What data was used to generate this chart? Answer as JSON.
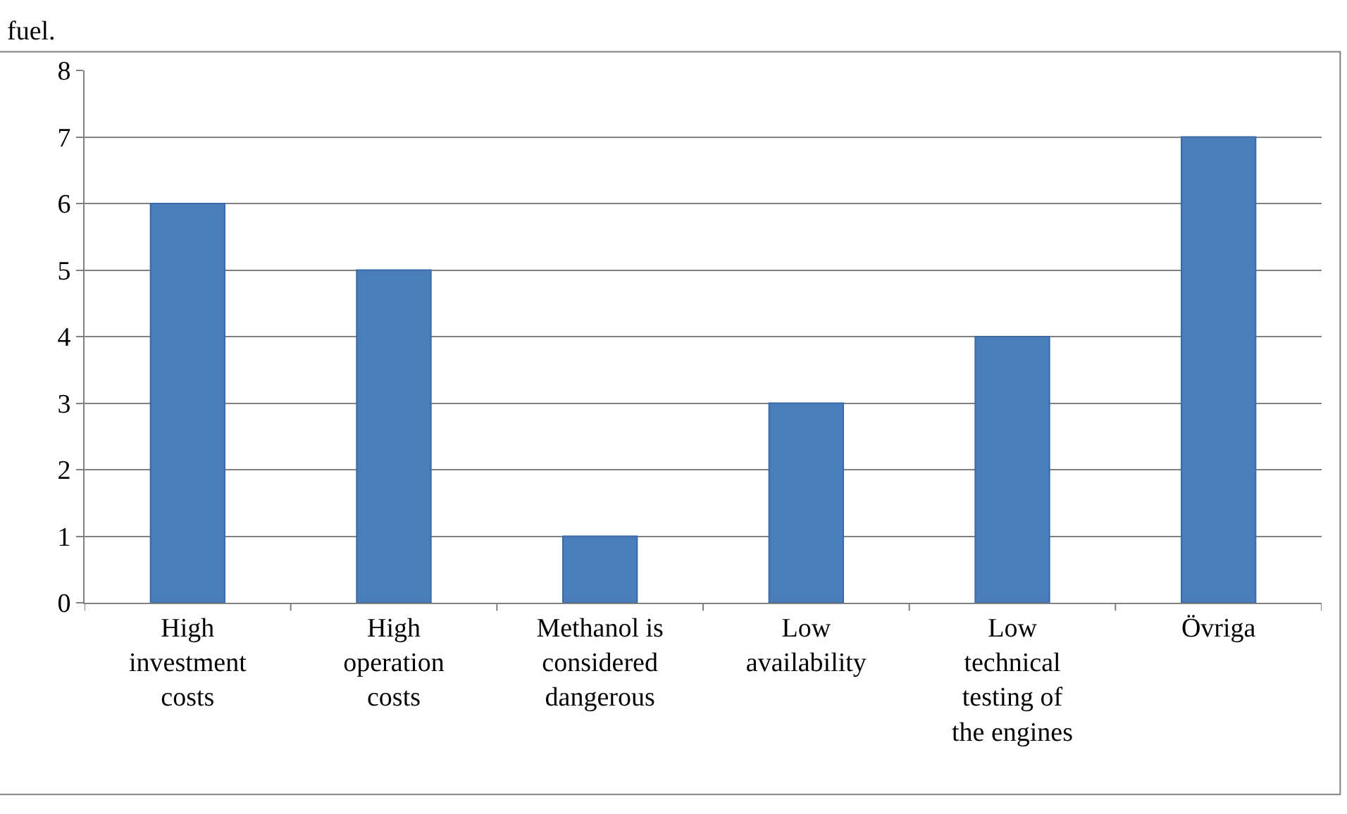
{
  "chart_data": {
    "type": "bar",
    "categories": [
      "High investment costs",
      "High operation costs",
      "Methanol is considered dangerous",
      "Low availability",
      "Low technical testing of the engines",
      "Övriga"
    ],
    "values": [
      6,
      5,
      1,
      3,
      4,
      7
    ],
    "color": "#4a7ebb",
    "ylim": [
      0,
      8
    ],
    "yticks": [
      0,
      1,
      2,
      3,
      4,
      5,
      6,
      7,
      8
    ],
    "grid": "y",
    "legend": false,
    "annotations": [
      "fuel."
    ]
  }
}
